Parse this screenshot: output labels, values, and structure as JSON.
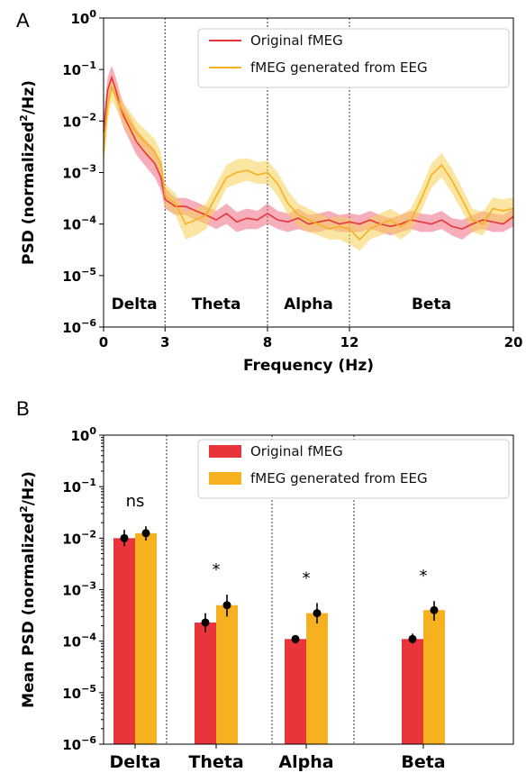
{
  "colors": {
    "original": "#e8353c",
    "generated": "#f5b120",
    "original_band": "#ee6b82",
    "generated_band": "#f7cf58"
  },
  "chart_data": [
    {
      "panel": "A",
      "type": "line",
      "xlabel": "Frequency (Hz)",
      "ylabel_main": "PSD (normalized",
      "ylabel_sup": "2",
      "ylabel_end": "/Hz)",
      "yscale": "log",
      "ylim": [
        1e-06,
        1
      ],
      "xlim": [
        0,
        20
      ],
      "x_ticks": [
        {
          "value": 0,
          "label": "0"
        },
        {
          "value": 3,
          "label": "3"
        },
        {
          "value": 8,
          "label": "8"
        },
        {
          "value": 12,
          "label": "12"
        },
        {
          "value": 20,
          "label": "20"
        }
      ],
      "y_ticks": [
        {
          "exp": 0,
          "base": "10",
          "sup": "0"
        },
        {
          "exp": -1,
          "base": "10",
          "sup": "−1"
        },
        {
          "exp": -2,
          "base": "10",
          "sup": "−2"
        },
        {
          "exp": -3,
          "base": "10",
          "sup": "−3"
        },
        {
          "exp": -4,
          "base": "10",
          "sup": "−4"
        },
        {
          "exp": -5,
          "base": "10",
          "sup": "−5"
        },
        {
          "exp": -6,
          "base": "10",
          "sup": "−6"
        }
      ],
      "band_boundaries": [
        3,
        8,
        12
      ],
      "bands": [
        {
          "label": "Delta",
          "center": 1.5
        },
        {
          "label": "Theta",
          "center": 5.5
        },
        {
          "label": "Alpha",
          "center": 10
        },
        {
          "label": "Beta",
          "center": 16
        }
      ],
      "legend_position": "top-right",
      "series": [
        {
          "name": "Original fMEG",
          "color": "#e8353c",
          "x": [
            0,
            0.2,
            0.4,
            0.6,
            0.8,
            1,
            1.3,
            1.6,
            2,
            2.5,
            2.8,
            3,
            3.5,
            4,
            4.5,
            5,
            5.5,
            6,
            6.5,
            7,
            7.5,
            8,
            8.5,
            9,
            9.5,
            10,
            10.5,
            11,
            11.5,
            12,
            12.5,
            13,
            13.5,
            14,
            14.5,
            15,
            15.5,
            16,
            16.5,
            17,
            17.5,
            18,
            18.5,
            19,
            19.5,
            20
          ],
          "y": [
            0.006,
            0.04,
            0.07,
            0.04,
            0.02,
            0.012,
            0.007,
            0.004,
            0.0025,
            0.0015,
            0.0008,
            0.0003,
            0.00022,
            0.00022,
            0.00018,
            0.00015,
            0.00012,
            0.00016,
            0.00011,
            0.00013,
            0.00012,
            0.00016,
            0.00012,
            0.00011,
            0.00013,
            0.0001,
            0.00011,
            0.00012,
            0.0001,
            0.00011,
            0.0001,
            0.00012,
            0.0001,
            9e-05,
            0.0001,
            0.00012,
            0.00011,
            0.0001,
            0.00012,
            9e-05,
            8e-05,
            0.0001,
            0.00012,
            0.00011,
            0.0001,
            0.00014
          ],
          "lower": [
            0.003,
            0.02,
            0.04,
            0.025,
            0.012,
            0.007,
            0.004,
            0.0022,
            0.0014,
            0.0008,
            0.00045,
            0.0002,
            0.00015,
            0.00015,
            0.00012,
            0.0001,
            8e-05,
            0.0001,
            7e-05,
            8e-05,
            8e-05,
            0.0001,
            8e-05,
            7e-05,
            8e-05,
            7e-05,
            7e-05,
            8e-05,
            7e-05,
            7e-05,
            7e-05,
            8e-05,
            7e-05,
            6e-05,
            7e-05,
            8e-05,
            7e-05,
            7e-05,
            8e-05,
            6e-05,
            5e-05,
            7e-05,
            8e-05,
            7e-05,
            7e-05,
            9e-05
          ],
          "upper": [
            0.012,
            0.07,
            0.12,
            0.07,
            0.035,
            0.02,
            0.012,
            0.007,
            0.0045,
            0.0028,
            0.0014,
            0.0005,
            0.00032,
            0.00032,
            0.00027,
            0.00022,
            0.00018,
            0.00025,
            0.00017,
            0.0002,
            0.00018,
            0.00025,
            0.00018,
            0.00016,
            0.0002,
            0.00015,
            0.00016,
            0.00018,
            0.00015,
            0.00016,
            0.00015,
            0.00018,
            0.00015,
            0.00013,
            0.00015,
            0.00018,
            0.00016,
            0.00015,
            0.00018,
            0.00013,
            0.00012,
            0.00015,
            0.00018,
            0.00016,
            0.00015,
            0.0002
          ]
        },
        {
          "name": "fMEG generated from EEG",
          "color": "#f5b120",
          "x": [
            0,
            0.2,
            0.4,
            0.6,
            0.8,
            1,
            1.3,
            1.6,
            2,
            2.5,
            2.8,
            3,
            3.5,
            4,
            4.5,
            5,
            5.5,
            6,
            6.5,
            7,
            7.5,
            8,
            8.5,
            9,
            9.5,
            10,
            10.5,
            11,
            11.5,
            12,
            12.5,
            13,
            13.5,
            14,
            14.5,
            15,
            15.5,
            16,
            16.5,
            17,
            17.5,
            18,
            18.5,
            19,
            19.5,
            20
          ],
          "y": [
            0.0025,
            0.02,
            0.045,
            0.03,
            0.02,
            0.014,
            0.009,
            0.006,
            0.004,
            0.0025,
            0.0015,
            0.00035,
            0.00025,
            0.0001,
            0.00012,
            0.00015,
            0.00035,
            0.0008,
            0.001,
            0.0011,
            0.0009,
            0.001,
            0.0006,
            0.00025,
            0.00015,
            0.00012,
            0.0001,
            8e-05,
            9e-05,
            8e-05,
            5e-05,
            8e-05,
            0.0001,
            0.00012,
            9e-05,
            0.00012,
            0.0003,
            0.0009,
            0.0014,
            0.0007,
            0.0003,
            0.00012,
            0.0001,
            0.0002,
            0.00018,
            0.0002
          ],
          "lower": [
            0.0012,
            0.01,
            0.025,
            0.018,
            0.012,
            0.008,
            0.005,
            0.0035,
            0.0023,
            0.0014,
            0.0008,
            0.00022,
            0.00015,
            5e-05,
            6e-05,
            8e-05,
            0.0002,
            0.0005,
            0.0006,
            0.0007,
            0.0006,
            0.0006,
            0.00035,
            0.00015,
            9e-05,
            7e-05,
            6e-05,
            5e-05,
            5e-05,
            4e-05,
            3e-05,
            5e-05,
            6e-05,
            7e-05,
            5e-05,
            7e-05,
            0.00018,
            0.0005,
            0.0008,
            0.0004,
            0.00018,
            7e-05,
            6e-05,
            0.00012,
            0.0001,
            0.00012
          ],
          "upper": [
            0.005,
            0.035,
            0.07,
            0.05,
            0.03,
            0.022,
            0.015,
            0.01,
            0.007,
            0.0045,
            0.0025,
            0.0006,
            0.0004,
            0.00018,
            0.0002,
            0.00025,
            0.0006,
            0.0014,
            0.0018,
            0.0019,
            0.0016,
            0.0017,
            0.001,
            0.00045,
            0.00025,
            0.0002,
            0.00016,
            0.00013,
            0.00014,
            0.00013,
            9e-05,
            0.00013,
            0.00016,
            0.0002,
            0.00015,
            0.0002,
            0.0005,
            0.0015,
            0.0024,
            0.0012,
            0.0005,
            0.0002,
            0.00017,
            0.00033,
            0.0003,
            0.00033
          ]
        }
      ]
    },
    {
      "panel": "B",
      "type": "bar",
      "ylabel_main": "Mean PSD (normalized",
      "ylabel_sup": "2",
      "ylabel_end": "/Hz)",
      "yscale": "log",
      "ylim": [
        1e-06,
        1
      ],
      "y_ticks": [
        {
          "exp": 0,
          "base": "10",
          "sup": "0"
        },
        {
          "exp": -1,
          "base": "10",
          "sup": "−1"
        },
        {
          "exp": -2,
          "base": "10",
          "sup": "−2"
        },
        {
          "exp": -3,
          "base": "10",
          "sup": "−3"
        },
        {
          "exp": -4,
          "base": "10",
          "sup": "−4"
        },
        {
          "exp": -5,
          "base": "10",
          "sup": "−5"
        },
        {
          "exp": -6,
          "base": "10",
          "sup": "−6"
        }
      ],
      "categories": [
        "Delta",
        "Theta",
        "Alpha",
        "Beta"
      ],
      "significance": [
        "ns",
        "*",
        "*",
        "*"
      ],
      "legend_position": "top-right",
      "series": [
        {
          "name": "Original fMEG",
          "color": "#e8353c",
          "values": [
            0.01,
            0.00023,
            0.00011,
            0.00011
          ],
          "err_low": [
            0.007,
            0.00015,
            9e-05,
            9e-05
          ],
          "err_high": [
            0.0145,
            0.00035,
            0.00013,
            0.00014
          ]
        },
        {
          "name": "fMEG generated from EEG",
          "color": "#f5b120",
          "values": [
            0.0125,
            0.0005,
            0.00035,
            0.0004
          ],
          "err_low": [
            0.009,
            0.0003,
            0.00022,
            0.00025
          ],
          "err_high": [
            0.017,
            0.0008,
            0.00055,
            0.0006
          ]
        }
      ]
    }
  ],
  "panel_labels": [
    "A",
    "B"
  ]
}
